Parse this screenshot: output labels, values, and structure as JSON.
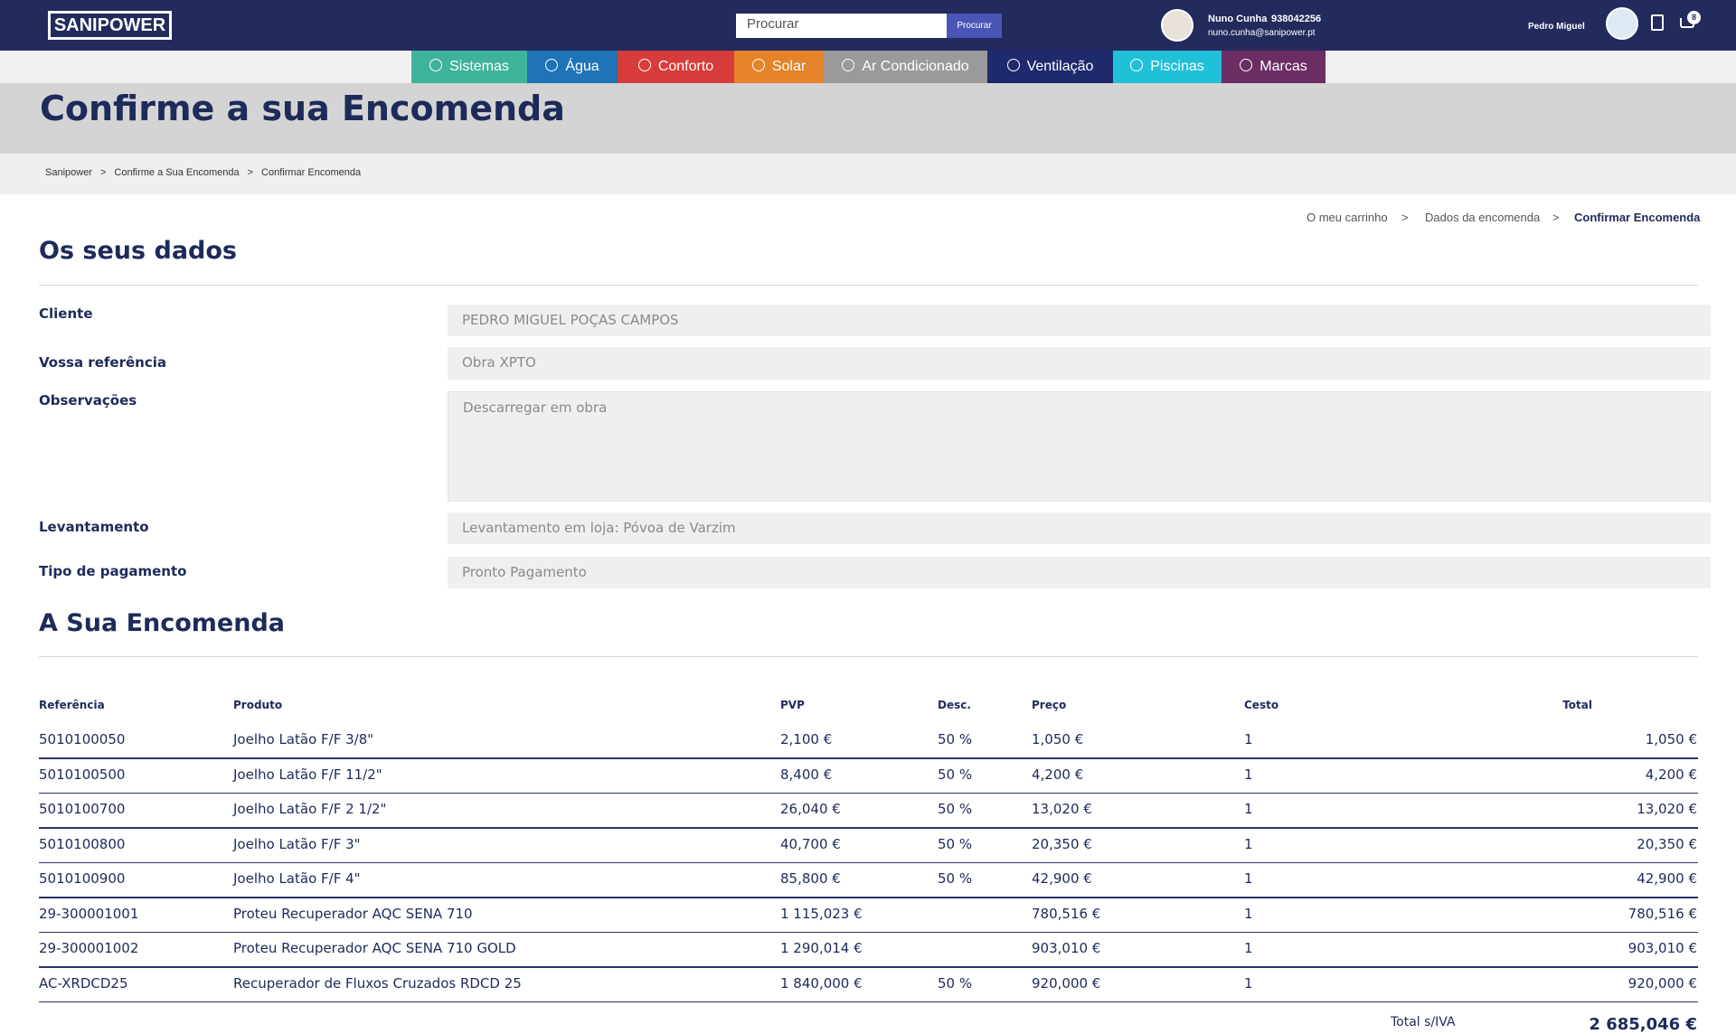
{
  "header": {
    "logo": "SANIPOWER",
    "search_placeholder": "Procurar",
    "search_button": "Procurar",
    "contact_name": "Nuno Cunha",
    "contact_phone": "938042256",
    "contact_email": "nuno.cunha@sanipower.pt",
    "user_name": "Pedro Miguel",
    "cart_count": "8"
  },
  "nav": [
    "Sistemas",
    "Água",
    "Conforto",
    "Solar",
    "Ar Condicionado",
    "Ventilação",
    "Piscinas",
    "Marcas"
  ],
  "page_title": "Confirme a sua Encomenda",
  "breadcrumb": [
    "Sanipower",
    "Confirme a Sua Encomenda",
    "Confirmar Encomenda"
  ],
  "steps": [
    "O meu carrinho",
    "Dados da encomenda",
    "Confirmar Encomenda"
  ],
  "details": {
    "title": "Os seus dados",
    "fields": [
      {
        "label": "Cliente",
        "value": "PEDRO MIGUEL POÇAS CAMPOS"
      },
      {
        "label": "Vossa referência",
        "value": "Obra XPTO"
      },
      {
        "label": "Observações",
        "value": "Descarregar em obra"
      },
      {
        "label": "Levantamento",
        "value": "Levantamento em loja: Póvoa de Varzim"
      },
      {
        "label": "Tipo de pagamento",
        "value": "Pronto Pagamento"
      }
    ]
  },
  "order": {
    "title": "A Sua Encomenda",
    "columns": [
      "Referência",
      "Produto",
      "PVP",
      "Desc.",
      "Preço",
      "Cesto",
      "Total"
    ],
    "rows": [
      [
        "5010100050",
        "Joelho Latão F/F 3/8\"",
        "2,100 €",
        "50 %",
        "1,050 €",
        "1",
        "1,050 €"
      ],
      [
        "5010100500",
        "Joelho Latão F/F 11/2\"",
        "8,400 €",
        "50 %",
        "4,200 €",
        "1",
        "4,200 €"
      ],
      [
        "5010100700",
        "Joelho Latão F/F 2 1/2\"",
        "26,040 €",
        "50 %",
        "13,020 €",
        "1",
        "13,020 €"
      ],
      [
        "5010100800",
        "Joelho Latão F/F 3\"",
        "40,700 €",
        "50 %",
        "20,350 €",
        "1",
        "20,350 €"
      ],
      [
        "5010100900",
        "Joelho Latão F/F 4\"",
        "85,800 €",
        "50 %",
        "42,900 €",
        "1",
        "42,900 €"
      ],
      [
        "29-300001001",
        "Proteu Recuperador AQC SENA 710",
        "1 115,023 €",
        null,
        "780,516 €",
        "1",
        "780,516 €"
      ],
      [
        "29-300001002",
        "Proteu Recuperador AQC SENA 710 GOLD",
        "1 290,014 €",
        null,
        "903,010 €",
        "1",
        "903,010 €"
      ],
      [
        "AC-XRDCD25",
        "Recuperador de Fluxos Cruzados RDCD 25",
        "1 840,000 €",
        "50 %",
        "920,000 €",
        "1",
        "920,000 €"
      ]
    ],
    "total_label": "Total s/IVA",
    "total_value": "2 685,046 €"
  }
}
